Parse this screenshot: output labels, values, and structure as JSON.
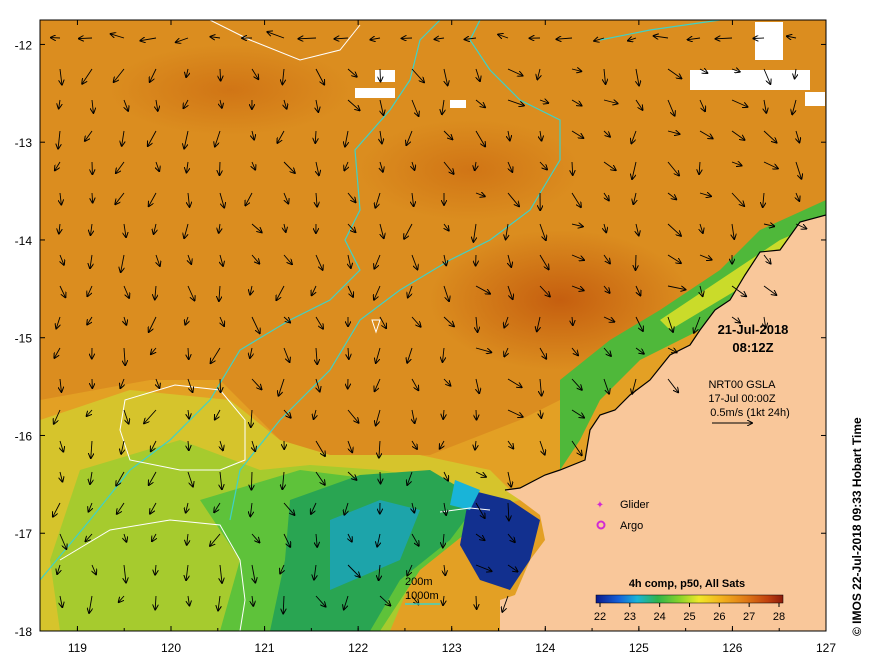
{
  "map": {
    "date": "21-Jul-2018",
    "time": "08:12Z",
    "gsla_product": "NRT00 GSLA",
    "gsla_date": "17-Jul 00:00Z",
    "speed_scale": "0.5m/s (1kt 24h)",
    "legend_glider": "Glider",
    "legend_argo": "Argo",
    "colorbar_title": "4h comp, p50, All Sats",
    "colorbar_ticks": [
      "22",
      "23",
      "24",
      "25",
      "26",
      "27",
      "28"
    ],
    "isobath_200": "200m",
    "isobath_1000": "1000m",
    "credit": "© IMOS 22-Jul-2018 09:33 Hobart Time",
    "x_ticks": [
      "119",
      "120",
      "121",
      "122",
      "123",
      "124",
      "125",
      "126",
      "127"
    ],
    "y_ticks": [
      "-12",
      "-13",
      "-14",
      "-15",
      "-16",
      "-17",
      "-18"
    ],
    "colors": {
      "land": "#f9c79a",
      "isobath_1000": "#3fd2c7",
      "isobath_200": "#ffffff",
      "glider": "#d22bd2",
      "argo": "#d22bd2",
      "warm": "#d8891c",
      "hot": "#c8620e",
      "cool": "#2aa54a",
      "cold": "#142c9a"
    }
  }
}
